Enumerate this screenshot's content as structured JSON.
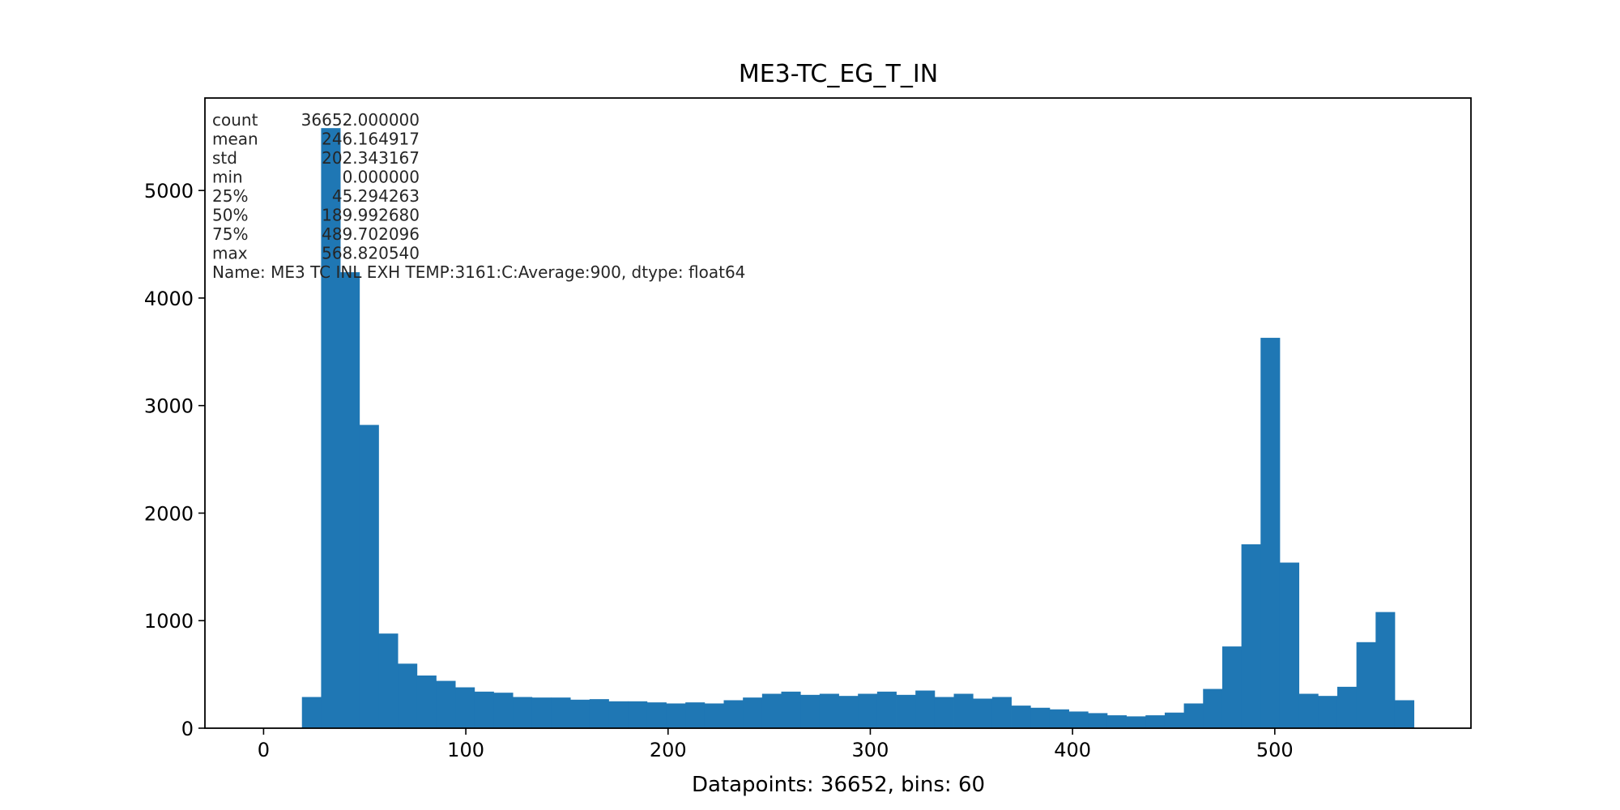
{
  "chart_data": {
    "type": "bar",
    "title": "ME3-TC_EG_T_IN",
    "xlabel": "Datapoints: 36652, bins: 60",
    "ylabel": "",
    "color": "#1f77b4",
    "xlim": [
      -29,
      597
    ],
    "ylim": [
      0,
      5860
    ],
    "xticks": [
      0,
      100,
      200,
      300,
      400,
      500
    ],
    "yticks": [
      0,
      1000,
      2000,
      3000,
      4000,
      5000
    ],
    "grid": false,
    "bin_start": 0,
    "bin_width": 9.4803,
    "values": [
      0,
      0,
      290,
      5580,
      4240,
      2820,
      880,
      600,
      490,
      440,
      380,
      340,
      330,
      290,
      285,
      285,
      265,
      270,
      250,
      250,
      240,
      230,
      240,
      230,
      260,
      285,
      320,
      340,
      310,
      320,
      300,
      320,
      340,
      310,
      350,
      290,
      320,
      275,
      290,
      210,
      190,
      175,
      155,
      140,
      120,
      110,
      120,
      145,
      230,
      365,
      760,
      1710,
      3630,
      1540,
      320,
      300,
      385,
      800,
      1080,
      260
    ],
    "stats": [
      {
        "label": "count",
        "value": "36652.000000"
      },
      {
        "label": "mean",
        "value": "246.164917"
      },
      {
        "label": "std",
        "value": "202.343167"
      },
      {
        "label": "min",
        "value": "0.000000"
      },
      {
        "label": "25%",
        "value": "45.294263"
      },
      {
        "label": "50%",
        "value": "189.992680"
      },
      {
        "label": "75%",
        "value": "489.702096"
      },
      {
        "label": "max",
        "value": "568.820540"
      }
    ],
    "stats_name_line": "Name: ME3 TC INL EXH TEMP:3161:C:Average:900, dtype: float64"
  }
}
